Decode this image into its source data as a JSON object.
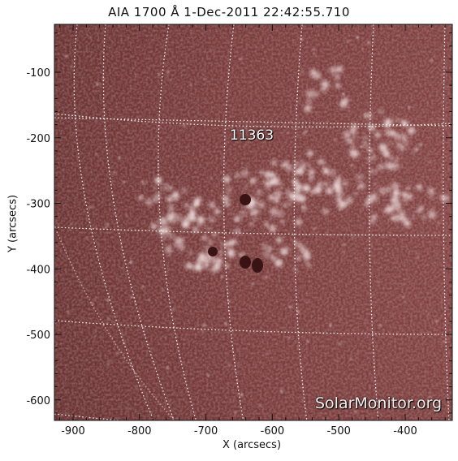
{
  "title": "AIA 1700 Å   1-Dec-2011 22:42:55.710",
  "x_axis": {
    "label": "X (arcsecs)",
    "ticks": [
      "-900",
      "-800",
      "-700",
      "-600",
      "-500",
      "-400"
    ]
  },
  "y_axis": {
    "label": "Y (arcsecs)",
    "ticks": [
      "-100",
      "-200",
      "-300",
      "-400",
      "-500",
      "-600"
    ]
  },
  "active_region": {
    "number": "11363"
  },
  "watermark": "SolarMonitor.org",
  "colors": {
    "disk": "#7a3c3c",
    "limb": "#2a1010",
    "plage": "#f0dede",
    "grid": "#ffffff"
  }
}
